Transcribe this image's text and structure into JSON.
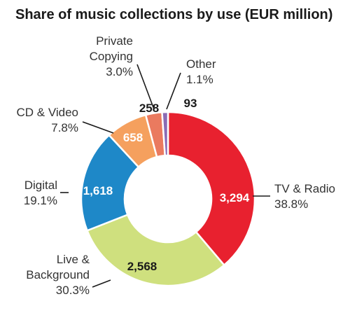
{
  "chart_data": {
    "type": "pie",
    "title": "Share of music collections by use (EUR million)",
    "slices": [
      {
        "name": "TV & Radio",
        "value": 3294,
        "value_label": "3,294",
        "percent": "38.8%",
        "color": "#e8212f"
      },
      {
        "name": "Live & Background",
        "value": 2568,
        "value_label": "2,568",
        "percent": "30.3%",
        "color": "#cfe07e"
      },
      {
        "name": "Digital",
        "value": 1618,
        "value_label": "1,618",
        "percent": "19.1%",
        "color": "#1e88c8"
      },
      {
        "name": "CD & Video",
        "value": 658,
        "value_label": "658",
        "percent": "7.8%",
        "color": "#f5a05e"
      },
      {
        "name": "Private Copying",
        "value": 258,
        "value_label": "258",
        "percent": "3.0%",
        "color": "#ea7a5f"
      },
      {
        "name": "Other",
        "value": 93,
        "value_label": "93",
        "percent": "1.1%",
        "color": "#8b6bb4"
      }
    ]
  }
}
